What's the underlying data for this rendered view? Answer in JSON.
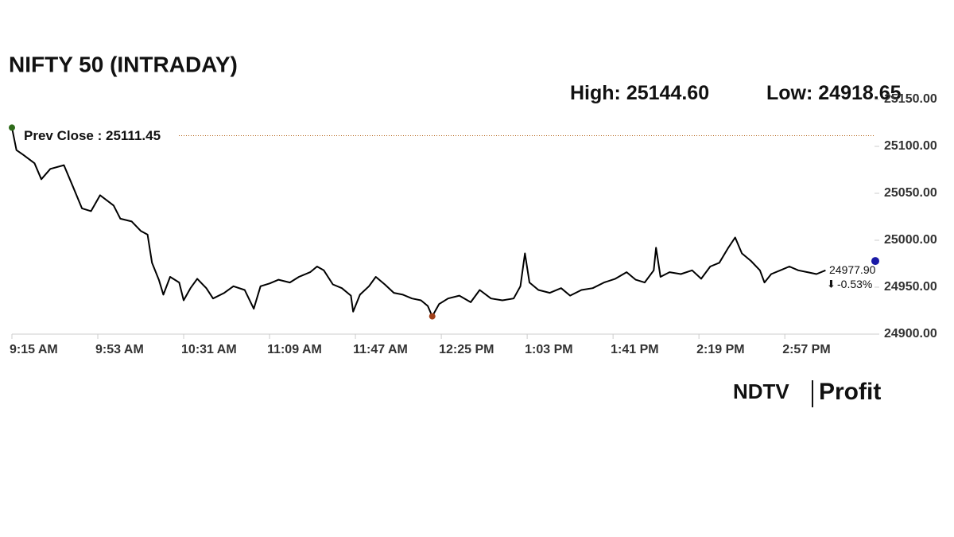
{
  "chart_data": {
    "type": "line",
    "title": "NIFTY 50 (INTRADAY)",
    "high": {
      "label": "High:",
      "value": 25144.6,
      "value_label": "25144.60"
    },
    "low": {
      "label": "Low:",
      "value": 24918.65,
      "value_label": "24918.65"
    },
    "prev_close": {
      "label": "Prev Close :",
      "value": 25111.45,
      "value_label": "25111.45",
      "color": "#b5651d"
    },
    "last": {
      "value": 24977.9,
      "label": "24977.90",
      "color": "#1a1aa6"
    },
    "change": {
      "value": -0.53,
      "label": "-0.53%",
      "color": "#c0392b"
    },
    "logo": {
      "brand": "NDTV",
      "product": "Profit"
    },
    "x": [
      "9:15 AM",
      "9:17 AM",
      "9:20 AM",
      "9:25 AM",
      "9:28 AM",
      "9:32 AM",
      "9:38 AM",
      "9:42 AM",
      "9:46 AM",
      "9:50 AM",
      "9:54 AM",
      "10:00 AM",
      "10:03 AM",
      "10:08 AM",
      "10:12 AM",
      "10:15 AM",
      "10:17 AM",
      "10:20 AM",
      "10:22 AM",
      "10:25 AM",
      "10:29 AM",
      "10:31 AM",
      "10:34 AM",
      "10:37 AM",
      "10:41 AM",
      "10:44 AM",
      "10:49 AM",
      "10:53 AM",
      "10:58 AM",
      "11:02 AM",
      "11:05 AM",
      "11:09 AM",
      "11:13 AM",
      "11:18 AM",
      "11:22 AM",
      "11:27 AM",
      "11:30 AM",
      "11:33 AM",
      "11:37 AM",
      "11:41 AM",
      "11:45 AM",
      "11:46 AM",
      "11:49 AM",
      "11:53 AM",
      "11:56 AM",
      "12:00 PM",
      "12:04 PM",
      "12:08 PM",
      "12:12 PM",
      "12:16 PM",
      "12:19 PM",
      "12:21 PM",
      "12:24 PM",
      "12:28 PM",
      "12:33 PM",
      "12:38 PM",
      "12:42 PM",
      "12:47 PM",
      "12:52 PM",
      "12:57 PM",
      "1:00 PM",
      "1:02 PM",
      "1:04 PM",
      "1:08 PM",
      "1:13 PM",
      "1:18 PM",
      "1:22 PM",
      "1:27 PM",
      "1:32 PM",
      "1:37 PM",
      "1:42 PM",
      "1:47 PM",
      "1:51 PM",
      "1:55 PM",
      "1:59 PM",
      "2:00 PM",
      "2:02 PM",
      "2:06 PM",
      "2:11 PM",
      "2:16 PM",
      "2:20 PM",
      "2:24 PM",
      "2:28 PM",
      "2:32 PM",
      "2:35 PM",
      "2:38 PM",
      "2:42 PM",
      "2:46 PM",
      "2:48 PM",
      "2:51 PM",
      "2:55 PM",
      "2:59 PM",
      "3:03 PM",
      "3:07 PM",
      "3:11 PM",
      "3:15 PM"
    ],
    "series": [
      {
        "name": "NIFTY 50",
        "color": "#000000",
        "values": [
          25120,
          25096,
          25091,
          25082,
          25065,
          25076,
          25080,
          25057,
          25034,
          25031,
          25048,
          25037,
          25023,
          25020,
          25010,
          25006,
          24976,
          24958,
          24942,
          24961,
          24955,
          24936,
          24949,
          24959,
          24949,
          24938,
          24944,
          24951,
          24947,
          24927,
          24951,
          24954,
          24958,
          24955,
          24961,
          24966,
          24972,
          24968,
          24953,
          24949,
          24941,
          24924,
          24942,
          24951,
          24961,
          24953,
          24944,
          24942,
          24938,
          24936,
          24930,
          24919,
          24932,
          24938,
          24941,
          24934,
          24947,
          24938,
          24936,
          24938,
          24951,
          24986,
          24955,
          24947,
          24944,
          24949,
          24941,
          24947,
          24949,
          24955,
          24959,
          24966,
          24958,
          24955,
          24968,
          24992,
          24961,
          24966,
          24964,
          24968,
          24959,
          24972,
          24976,
          24992,
          25003,
          24986,
          24978,
          24968,
          24955,
          24964,
          24968,
          24972,
          24968,
          24966,
          24964,
          24968
        ]
      }
    ],
    "start_marker": {
      "index": 0,
      "color": "#2e6b1a"
    },
    "low_marker": {
      "index": 51,
      "color": "#a0401a"
    },
    "xlim": [
      "9:15 AM",
      "3:30 PM"
    ],
    "xticks": [
      "9:15 AM",
      "9:53 AM",
      "10:31 AM",
      "11:09 AM",
      "11:47 AM",
      "12:25 PM",
      "1:03 PM",
      "1:41 PM",
      "2:19 PM",
      "2:57 PM"
    ],
    "ylim": [
      24900,
      25150
    ],
    "yticks": [
      {
        "value": 24900,
        "label": "24900.00"
      },
      {
        "value": 24950,
        "label": "24950.00"
      },
      {
        "value": 25000,
        "label": "25000.00"
      },
      {
        "value": 25050,
        "label": "25050.00"
      },
      {
        "value": 25100,
        "label": "25100.00"
      },
      {
        "value": 25150,
        "label": "25150.00"
      }
    ]
  }
}
